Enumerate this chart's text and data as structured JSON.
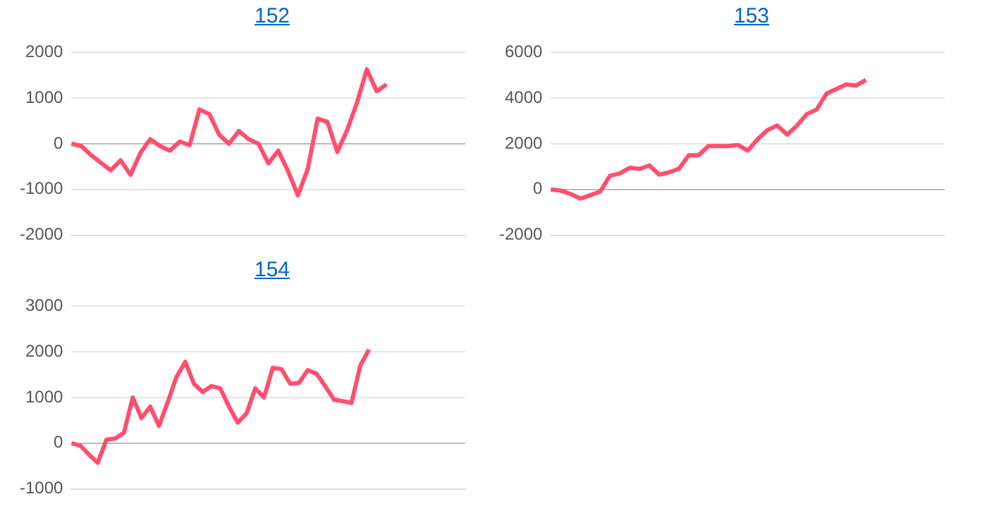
{
  "chart_data": [
    {
      "type": "line",
      "title": "152",
      "categories": [
        null,
        null,
        null,
        null,
        null,
        null,
        null,
        null,
        null,
        null,
        null,
        null,
        null,
        null,
        null,
        null,
        null,
        null,
        null,
        null,
        null,
        null,
        null,
        null,
        null,
        null,
        null,
        null,
        null,
        null,
        null,
        null,
        null,
        null,
        null,
        null,
        null,
        null,
        null,
        null,
        null
      ],
      "series": [
        {
          "color": "#ff4f6e",
          "values": [
            0,
            -50,
            -250,
            -420,
            -580,
            -360,
            -680,
            -200,
            100,
            -50,
            -150,
            50,
            -30,
            750,
            650,
            200,
            0,
            280,
            100,
            0,
            -430,
            -150,
            -600,
            -1130,
            -550,
            550,
            480,
            -180,
            300,
            900,
            1630,
            1150,
            1300,
            null,
            null,
            null,
            null,
            null,
            null,
            null,
            null
          ]
        }
      ],
      "ylim": [
        -2000,
        2000
      ],
      "yticks": [
        -2000,
        -1000,
        0,
        1000,
        2000
      ],
      "grid": "y",
      "legend": false,
      "marker": "none",
      "line_style": "solid",
      "tick_labels": "y"
    },
    {
      "type": "line",
      "title": "153",
      "categories": [
        null,
        null,
        null,
        null,
        null,
        null,
        null,
        null,
        null,
        null,
        null,
        null,
        null,
        null,
        null,
        null,
        null,
        null,
        null,
        null,
        null,
        null,
        null,
        null,
        null,
        null,
        null,
        null,
        null,
        null,
        null,
        null,
        null,
        null,
        null,
        null,
        null,
        null,
        null,
        null,
        null
      ],
      "series": [
        {
          "color": "#ff4f6e",
          "values": [
            0,
            -50,
            -200,
            -400,
            -250,
            -100,
            600,
            700,
            950,
            900,
            1050,
            650,
            750,
            900,
            1500,
            1500,
            1900,
            1900,
            1900,
            1950,
            1700,
            2200,
            2600,
            2800,
            2400,
            2800,
            3300,
            3500,
            4200,
            4400,
            4600,
            4550,
            4800,
            null,
            null,
            null,
            null,
            null,
            null,
            null,
            null
          ]
        }
      ],
      "ylim": [
        -2000,
        6000
      ],
      "yticks": [
        -2000,
        0,
        2000,
        4000,
        6000
      ],
      "grid": "y",
      "legend": false,
      "marker": "none",
      "line_style": "solid",
      "tick_labels": "y"
    },
    {
      "type": "line",
      "title": "154",
      "categories": [
        null,
        null,
        null,
        null,
        null,
        null,
        null,
        null,
        null,
        null,
        null,
        null,
        null,
        null,
        null,
        null,
        null,
        null,
        null,
        null,
        null,
        null,
        null,
        null,
        null,
        null,
        null,
        null,
        null,
        null,
        null,
        null,
        null,
        null,
        null,
        null,
        null,
        null,
        null,
        null,
        null,
        null,
        null,
        null,
        null,
        null
      ],
      "series": [
        {
          "color": "#ff4f6e",
          "values": [
            0,
            -50,
            -250,
            -430,
            80,
            100,
            230,
            1000,
            550,
            800,
            380,
            900,
            1450,
            1780,
            1300,
            1120,
            1250,
            1200,
            800,
            450,
            650,
            1200,
            1000,
            1650,
            1620,
            1300,
            1320,
            1600,
            1520,
            1250,
            950,
            920,
            880,
            1700,
            2050,
            null,
            null,
            null,
            null,
            null,
            null,
            null,
            null,
            null,
            null,
            null
          ]
        }
      ],
      "ylim": [
        -1000,
        3000
      ],
      "yticks": [
        -1000,
        0,
        1000,
        2000,
        3000
      ],
      "grid": "y",
      "legend": false,
      "marker": "none",
      "line_style": "solid",
      "tick_labels": "y"
    }
  ]
}
